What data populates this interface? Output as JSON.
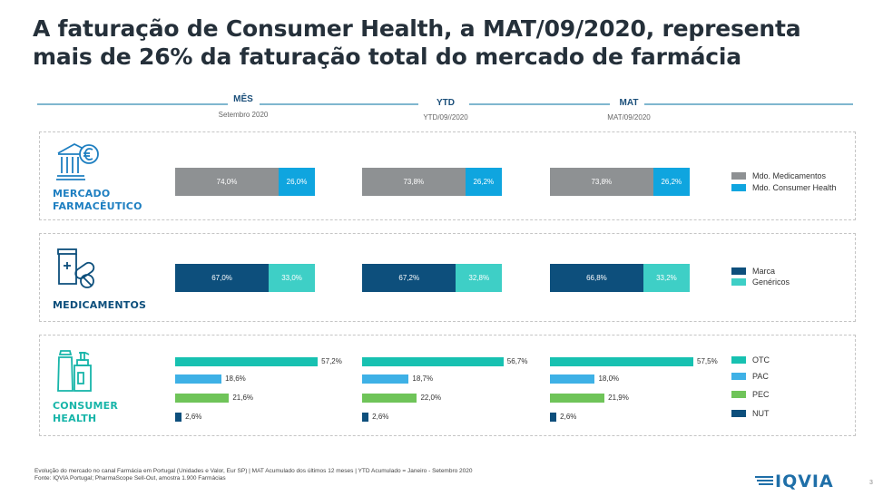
{
  "title_line1": "A faturação de Consumer Health, a MAT/09/2020, representa",
  "title_line2": "mais de 26% da faturação total do mercado de farmácia",
  "columns": [
    {
      "header": "MÊS",
      "sub": "Setembro 2020"
    },
    {
      "header": "YTD",
      "sub": "YTD/09//2020"
    },
    {
      "header": "MAT",
      "sub": "MAT/09/2020"
    }
  ],
  "categories": {
    "mercado": {
      "line1": "MERCADO",
      "line2": "FARMACÊUTICO"
    },
    "medicamentos": {
      "line1": "MEDICAMENTOS"
    },
    "consumer": {
      "line1": "CONSUMER",
      "line2": "HEALTH"
    }
  },
  "legends": {
    "mercado": [
      "Mdo. Medicamentos",
      "Mdo. Consumer Health"
    ],
    "medicamentos": [
      "Marca",
      "Genéricos"
    ],
    "consumer": [
      "OTC",
      "PAC",
      "PEC",
      "NUT"
    ]
  },
  "colors": {
    "mdo_medicamentos": "#8e9193",
    "mdo_consumer_health": "#0fa5df",
    "marca": "#0d4f7c",
    "genericos": "#3ecfc6",
    "otc": "#17c1b1",
    "pac": "#3eb1e6",
    "pec": "#6fc459",
    "nut": "#0d4f7c",
    "title": "#25303a",
    "header": "#1b4f7a",
    "category_mercado": "#1e7fc1",
    "category_medicamentos": "#0d4f7c",
    "category_consumer": "#17b5a9"
  },
  "chart_data": [
    {
      "type": "bar",
      "name": "MERCADO FARMACÊUTICO",
      "stacked": true,
      "orientation": "horizontal",
      "categories": [
        "MÊS",
        "YTD",
        "MAT"
      ],
      "series": [
        {
          "name": "Mdo. Medicamentos",
          "values": [
            74.0,
            73.8,
            73.8
          ],
          "labels": [
            "74,0%",
            "73,8%",
            "73,8%"
          ]
        },
        {
          "name": "Mdo. Consumer Health",
          "values": [
            26.0,
            26.2,
            26.2
          ],
          "labels": [
            "26,0%",
            "26,2%",
            "26,2%"
          ]
        }
      ]
    },
    {
      "type": "bar",
      "name": "MEDICAMENTOS",
      "stacked": true,
      "orientation": "horizontal",
      "categories": [
        "MÊS",
        "YTD",
        "MAT"
      ],
      "series": [
        {
          "name": "Marca",
          "values": [
            67.0,
            67.2,
            66.8
          ],
          "labels": [
            "67,0%",
            "67,2%",
            "66,8%"
          ]
        },
        {
          "name": "Genéricos",
          "values": [
            33.0,
            32.8,
            33.2
          ],
          "labels": [
            "33,0%",
            "32,8%",
            "33,2%"
          ]
        }
      ]
    },
    {
      "type": "bar",
      "name": "CONSUMER HEALTH",
      "stacked": false,
      "orientation": "horizontal",
      "categories": [
        "MÊS",
        "YTD",
        "MAT"
      ],
      "series": [
        {
          "name": "OTC",
          "values": [
            57.2,
            56.7,
            57.5
          ],
          "labels": [
            "57,2%",
            "56,7%",
            "57,5%"
          ]
        },
        {
          "name": "PAC",
          "values": [
            18.6,
            18.7,
            18.0
          ],
          "labels": [
            "18,6%",
            "18,7%",
            "18,0%"
          ]
        },
        {
          "name": "PEC",
          "values": [
            21.6,
            22.0,
            21.9
          ],
          "labels": [
            "21,6%",
            "22,0%",
            "21,9%"
          ]
        },
        {
          "name": "NUT",
          "values": [
            2.6,
            2.6,
            2.6
          ],
          "labels": [
            "2,6%",
            "2,6%",
            "2,6%"
          ]
        }
      ]
    }
  ],
  "footnote_line1": "Evolução do mercado no canal Farmácia em Portugal (Unidades e Valor, Eur SP) | MAT Acumulado  dos últimos 12 meses | YTD Acumulado = Janeiro - Setembro 2020",
  "footnote_line2": "Fonte: IQVIA Portugal; PharmaScope Sell-Out, amostra 1.900 Farmácias",
  "logo_text": "IQVIA",
  "page_number": "3"
}
